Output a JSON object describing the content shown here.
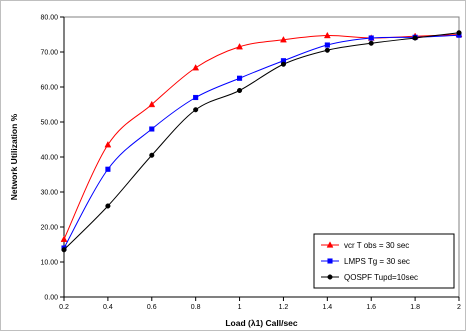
{
  "chart_data": {
    "type": "line",
    "title": "",
    "xlabel": "Load (λ1) Call/sec",
    "ylabel": "Network Utilization %",
    "xlim": [
      0.2,
      2.0
    ],
    "ylim": [
      0,
      80
    ],
    "x_ticks": [
      "0.2",
      "0.4",
      "0.6",
      "0.8",
      "1",
      "1.2",
      "1.4",
      "1.6",
      "1.8",
      "2"
    ],
    "y_ticks": [
      "0.00",
      "10.00",
      "20.00",
      "30.00",
      "40.00",
      "50.00",
      "60.00",
      "70.00",
      "80.00"
    ],
    "x": [
      0.2,
      0.4,
      0.6,
      0.8,
      1.0,
      1.2,
      1.4,
      1.6,
      1.8,
      2.0
    ],
    "grid": false,
    "legend_position": "bottom-right",
    "series": [
      {
        "name": "vcr T obs = 30 sec",
        "color": "#ff0000",
        "marker": "triangle",
        "values": [
          16.5,
          43.5,
          55.0,
          65.5,
          71.5,
          73.5,
          74.7,
          74.0,
          74.5,
          75.0
        ]
      },
      {
        "name": "LMPS Tg = 30 sec",
        "color": "#0000ff",
        "marker": "square",
        "values": [
          14.0,
          36.5,
          48.0,
          57.0,
          62.5,
          67.5,
          72.0,
          74.0,
          74.2,
          74.8
        ]
      },
      {
        "name": "QOSPF Tupd=10sec",
        "color": "#000000",
        "marker": "circle",
        "values": [
          13.5,
          26.0,
          40.5,
          53.5,
          59.0,
          66.5,
          70.5,
          72.5,
          74.0,
          75.5
        ]
      }
    ]
  }
}
